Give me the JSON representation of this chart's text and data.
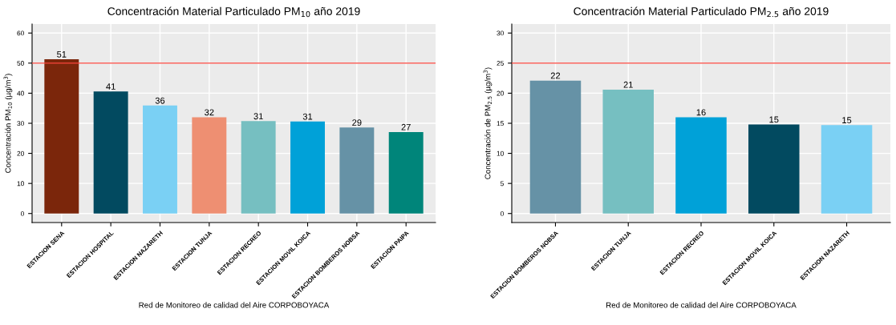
{
  "chart_data": [
    {
      "type": "bar",
      "title": "Concentración Material Particulado PM$_{10}$ año 2019",
      "xlabel": "Red de Monitoreo de calidad del Aire CORPOBOYACA",
      "ylabel": "Concentración PM$_{10}$ (µg/m$^{3}$)",
      "categories": [
        "ESTACION SENA",
        "ESTACION HOSPITAL",
        "ESTACION NAZARETH",
        "ESTACION TUNJA",
        "ESTACION RECREO",
        "ESTACION MOVIL KOICA",
        "ESTACION BOMBEROS NOBSA",
        "ESTACION PAIPA"
      ],
      "values": [
        51.3,
        40.6,
        35.9,
        32.0,
        30.7,
        30.6,
        28.6,
        27.1
      ],
      "colors": [
        "#7b260b",
        "#024a60",
        "#7ad0f4",
        "#ee8f72",
        "#76bfc1",
        "#00a1d8",
        "#6692a6",
        "#00857a"
      ],
      "value_labels": [
        "51",
        "41",
        "36",
        "32",
        "31",
        "31",
        "29",
        "27"
      ],
      "ylim": [
        -3,
        63
      ],
      "yticks": [
        0,
        10,
        20,
        30,
        40,
        50,
        60
      ],
      "grid": true,
      "ref_lines": [
        {
          "axis": "y",
          "value": 50,
          "color": "#f8453d"
        }
      ]
    },
    {
      "type": "bar",
      "title": "Concentración Material Particulado PM$_{2.5}$ año 2019",
      "xlabel": "Red de Monitoreo de calidad del Aire CORPOBOYACA",
      "ylabel": "Concentración de PM$_{2.5}$ (µg/m$^{3}$)",
      "categories": [
        "ESTACION BOMBEROS NOBSA",
        "ESTACION TUNJA",
        "ESTACION RECREO",
        "ESTACION MOVIL KOICA",
        "ESTACION NAZARETH"
      ],
      "values": [
        22.1,
        20.6,
        16.0,
        14.8,
        14.7
      ],
      "colors": [
        "#6692a6",
        "#76bfc1",
        "#00a1d8",
        "#024a60",
        "#7ad0f4"
      ],
      "value_labels": [
        "22",
        "21",
        "16",
        "15",
        "15"
      ],
      "ylim": [
        -1.5,
        31.5
      ],
      "yticks": [
        0,
        5,
        10,
        15,
        20,
        25,
        30
      ],
      "grid": true,
      "ref_lines": [
        {
          "axis": "y",
          "value": 25,
          "color": "#f8453d"
        }
      ]
    }
  ]
}
